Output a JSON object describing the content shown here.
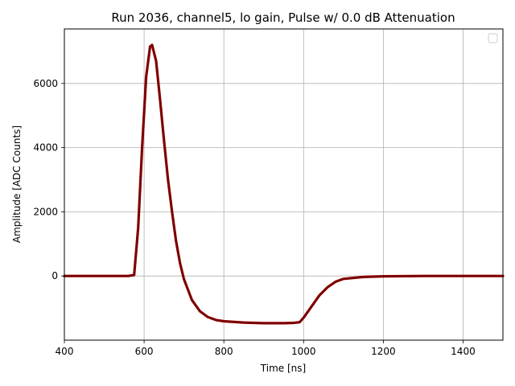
{
  "chart_data": {
    "type": "line",
    "title": "Run 2036, channel5, lo gain, Pulse w/ 0.0 dB Attenuation",
    "xlabel": "Time [ns]",
    "ylabel": "Amplitude [ADC Counts]",
    "xlim": [
      400,
      1500
    ],
    "ylim": [
      -2000,
      7700
    ],
    "x_ticks": [
      400,
      600,
      800,
      1000,
      1200,
      1400
    ],
    "y_ticks": [
      0,
      2000,
      4000,
      6000
    ],
    "grid": true,
    "legend": "top-right (empty)",
    "series_color": "#8b0000",
    "series": [
      {
        "x": [
          400,
          560,
          575,
          585,
          595,
          605,
          615,
          620,
          630,
          640,
          650,
          660,
          670,
          680,
          690,
          700,
          720,
          740,
          760,
          780,
          800,
          850,
          900,
          950,
          975,
          990,
          1000,
          1020,
          1040,
          1060,
          1080,
          1100,
          1150,
          1200,
          1300,
          1400,
          1500
        ],
        "y": [
          0,
          0,
          30,
          1500,
          4000,
          6200,
          7150,
          7200,
          6700,
          5500,
          4200,
          3000,
          2000,
          1100,
          400,
          -100,
          -750,
          -1100,
          -1280,
          -1370,
          -1410,
          -1450,
          -1470,
          -1470,
          -1460,
          -1440,
          -1300,
          -950,
          -600,
          -350,
          -180,
          -90,
          -30,
          -10,
          0,
          0,
          0
        ]
      }
    ]
  }
}
